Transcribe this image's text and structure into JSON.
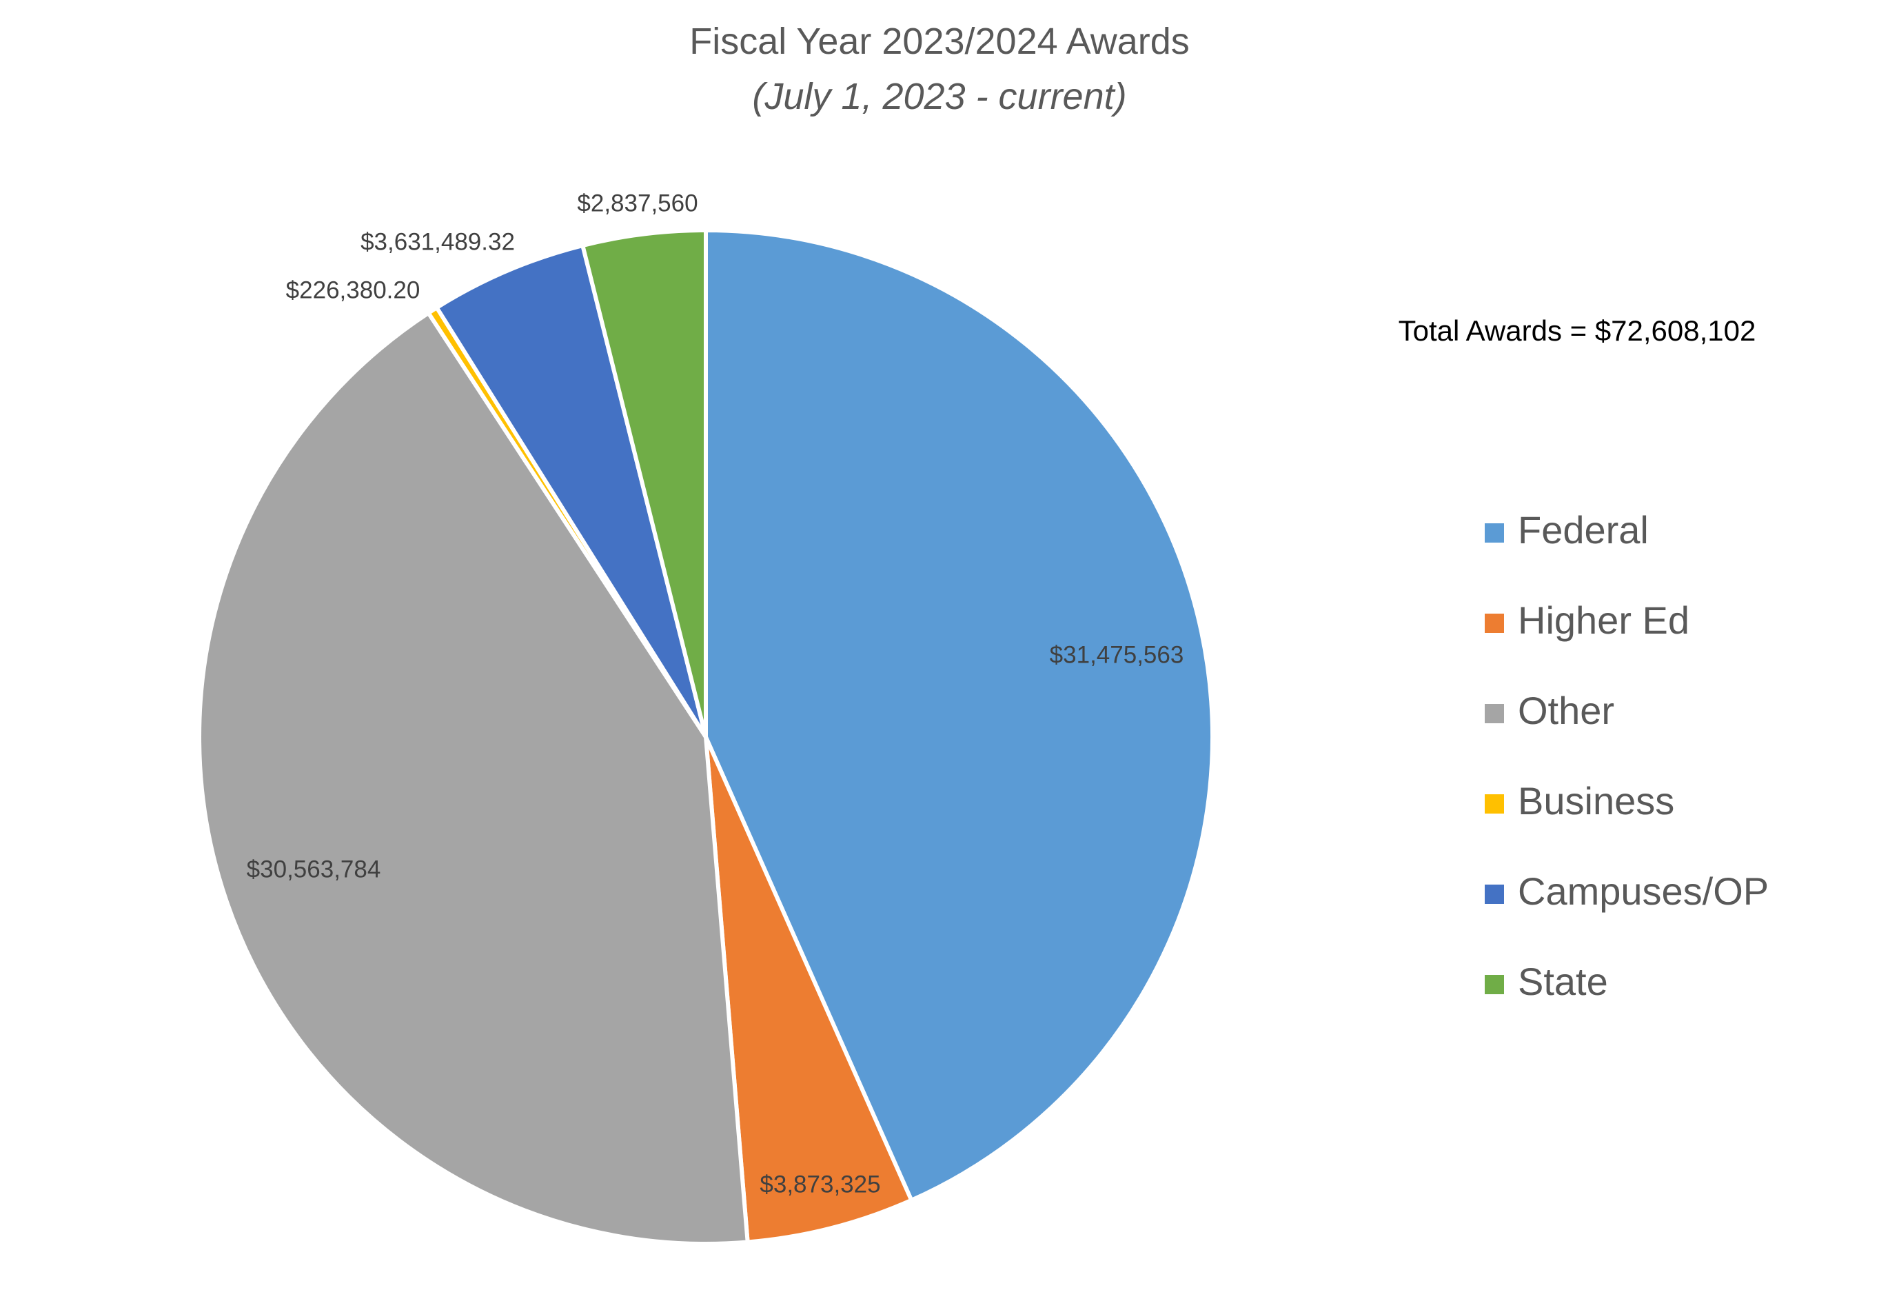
{
  "chart_data": {
    "type": "pie",
    "title": "Fiscal Year 2023/2024 Awards",
    "subtitle": "(July 1, 2023 - current)",
    "annotation": "Total Awards = $72,608,102",
    "legend_position": "right",
    "slices": [
      {
        "name": "Federal",
        "value": 31475563,
        "label": "$31,475,563",
        "color": "#5B9BD5"
      },
      {
        "name": "Higher Ed",
        "value": 3873325,
        "label": "$3,873,325",
        "color": "#ED7D31"
      },
      {
        "name": "Other",
        "value": 30563784,
        "label": "$30,563,784",
        "color": "#A5A5A5"
      },
      {
        "name": "Business",
        "value": 226380.2,
        "label": "$226,380.20",
        "color": "#FFC000"
      },
      {
        "name": "Campuses/OP",
        "value": 3631489.32,
        "label": "$3,631,489.32",
        "color": "#4472C4"
      },
      {
        "name": "State",
        "value": 2837560,
        "label": "$2,837,560",
        "color": "#70AD47"
      }
    ]
  }
}
